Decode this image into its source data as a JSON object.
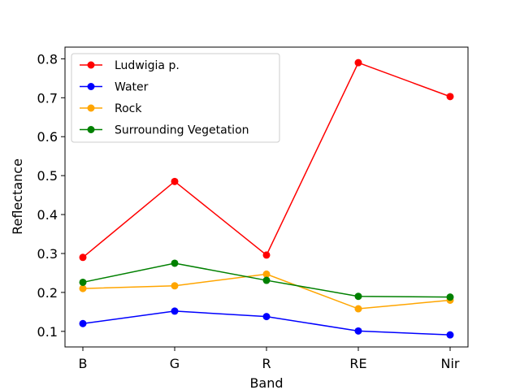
{
  "chart_data": {
    "type": "line",
    "title": "",
    "xlabel": "Band",
    "ylabel": "Reflectance",
    "categories": [
      "B",
      "G",
      "R",
      "RE",
      "Nir"
    ],
    "ylim": [
      0.06,
      0.83
    ],
    "yticks": [
      0.1,
      0.2,
      0.3,
      0.4,
      0.5,
      0.6,
      0.7,
      0.8
    ],
    "ytick_labels": [
      "0.1",
      "0.2",
      "0.3",
      "0.4",
      "0.5",
      "0.6",
      "0.7",
      "0.8"
    ],
    "grid": false,
    "legend_position": "top-left",
    "series": [
      {
        "name": "Ludwigia p.",
        "color": "#ff0000",
        "values": [
          0.29,
          0.485,
          0.296,
          0.79,
          0.703
        ]
      },
      {
        "name": "Water",
        "color": "#0000ff",
        "values": [
          0.12,
          0.152,
          0.138,
          0.101,
          0.091
        ]
      },
      {
        "name": "Rock",
        "color": "#ffa500",
        "values": [
          0.21,
          0.217,
          0.247,
          0.158,
          0.18
        ]
      },
      {
        "name": "Surrounding Vegetation",
        "color": "#008000",
        "values": [
          0.226,
          0.275,
          0.231,
          0.19,
          0.188
        ]
      }
    ]
  }
}
